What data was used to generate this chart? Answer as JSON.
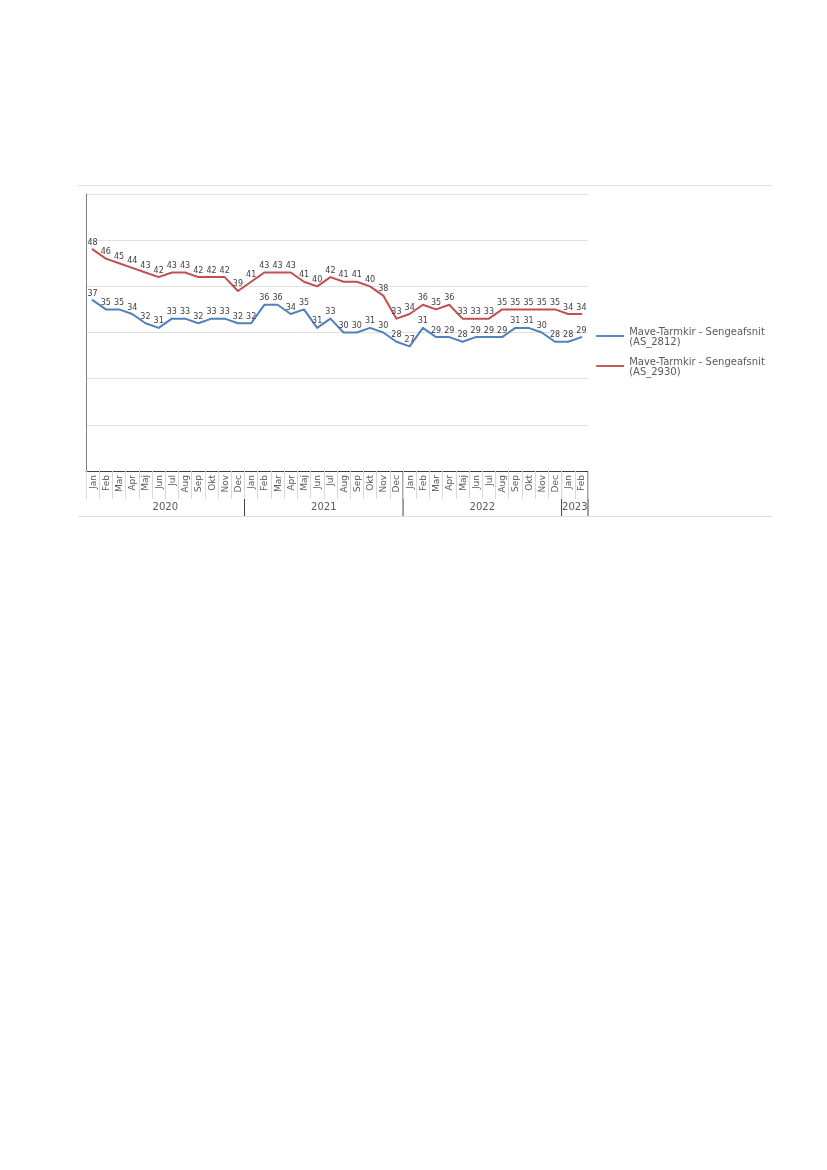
{
  "chart_data": {
    "type": "line",
    "categories": [
      "Jan",
      "Feb",
      "Mar",
      "Apr",
      "Maj",
      "Jun",
      "Jul",
      "Aug",
      "Sep",
      "Okt",
      "Nov",
      "Dec",
      "Jan",
      "Feb",
      "Mar",
      "Apr",
      "Maj",
      "Jun",
      "Jul",
      "Aug",
      "Sep",
      "Okt",
      "Nov",
      "Dec",
      "Jan",
      "Feb",
      "Mar",
      "Apr",
      "Maj",
      "Jun",
      "Jul",
      "Aug",
      "Sep",
      "Okt",
      "Nov",
      "Dec",
      "Jan",
      "Feb"
    ],
    "annotations": [
      "2020",
      "2021",
      "2022",
      "2023"
    ],
    "series": [
      {
        "name": "Mave-Tarmkir - Sengeafsnit (AS_2812)",
        "color": "#4f81bd",
        "values": [
          37,
          35,
          35,
          34,
          32,
          31,
          33,
          33,
          32,
          33,
          33,
          32,
          32,
          36,
          36,
          34,
          35,
          31,
          33,
          30,
          30,
          31,
          30,
          28,
          27,
          31,
          29,
          29,
          28,
          29,
          29,
          29,
          31,
          31,
          30,
          28,
          28,
          29
        ]
      },
      {
        "name": "Mave-Tarmkir - Sengeafsnit (AS_2930)",
        "color": "#c0504d",
        "values": [
          48,
          46,
          45,
          44,
          43,
          42,
          43,
          43,
          42,
          42,
          42,
          39,
          41,
          43,
          43,
          43,
          41,
          40,
          42,
          41,
          41,
          40,
          38,
          33,
          34,
          36,
          35,
          36,
          33,
          33,
          33,
          35,
          35,
          35,
          35,
          35,
          34,
          34
        ]
      }
    ],
    "ylim": [
      0,
      60
    ],
    "yticks": [
      {
        "value": 0,
        "label": null
      },
      {
        "value": 10,
        "label": null
      },
      {
        "value": 20,
        "label": null
      },
      {
        "value": 30,
        "label": null
      },
      {
        "value": 40,
        "label": null
      },
      {
        "value": 50,
        "label": null
      },
      {
        "value": 60,
        "label": null
      }
    ],
    "tick_labels": "x",
    "grid": "y",
    "legend": "right",
    "data_labels": true,
    "marker": "none",
    "line_style": "solid"
  }
}
